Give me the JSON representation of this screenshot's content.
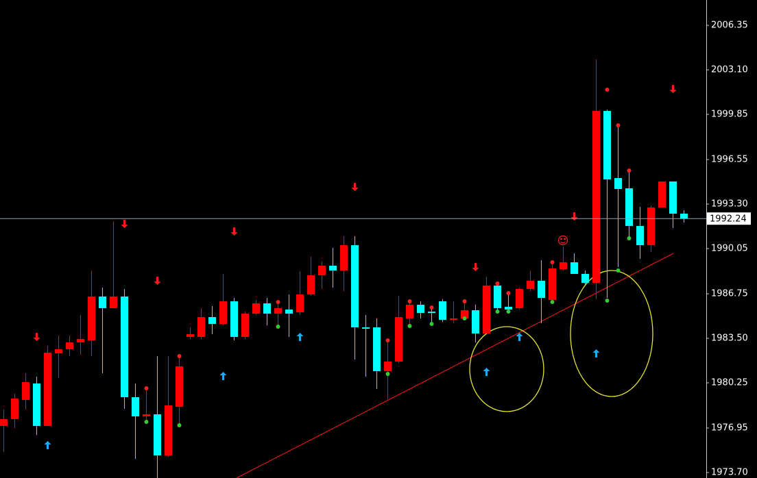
{
  "chart_data": {
    "type": "candlestick",
    "up_color": "#ff0000",
    "down_color": "#00ffff",
    "categories": [
      null,
      null,
      null,
      null,
      null,
      null,
      null,
      null,
      null,
      null,
      null,
      null,
      null,
      null,
      null,
      null,
      null,
      null,
      null,
      null,
      null,
      null,
      null,
      null,
      null,
      null,
      null,
      null,
      null,
      null,
      null,
      null,
      null,
      null,
      null,
      null,
      null,
      null,
      null,
      null,
      null,
      null,
      null,
      null,
      null,
      null,
      null,
      null,
      null,
      null,
      null,
      null,
      null,
      null,
      null,
      null,
      null,
      null,
      null,
      null,
      null,
      null,
      null
    ],
    "open": [
      1977.1,
      1977.6,
      1979.0,
      1980.2,
      1977.1,
      1982.4,
      1982.7,
      1983.2,
      1983.35,
      1986.55,
      1985.7,
      1986.55,
      1979.2,
      1977.8,
      1977.95,
      1974.95,
      1978.5,
      1983.6,
      1983.6,
      1985.05,
      1984.55,
      1986.2,
      1983.6,
      1985.3,
      1986.05,
      1985.3,
      1985.6,
      1985.4,
      1986.7,
      1988.1,
      1988.8,
      1988.45,
      1990.3,
      1984.3,
      1984.3,
      1981.1,
      1981.8,
      1984.95,
      1985.95,
      1985.45,
      1986.2,
      1984.85,
      1984.95,
      1985.55,
      1983.85,
      1987.35,
      1985.8,
      1985.7,
      1987.1,
      1987.7,
      1986.3,
      1988.55,
      1989.05,
      1988.2,
      1987.55,
      2000.1,
      1995.2,
      1994.45,
      1991.7,
      1990.3,
      1993.05,
      1994.95,
      1992.6
    ],
    "high": [
      1978.3,
      1979.45,
      1980.95,
      1980.7,
      1982.95,
      1983.7,
      1983.7,
      1985.2,
      1988.45,
      1987.2,
      1992.05,
      1987.1,
      1980.2,
      1979.9,
      1982.2,
      1982.2,
      1982.2,
      1984.3,
      1985.7,
      1985.85,
      1988.2,
      1986.45,
      1985.45,
      1986.3,
      1986.45,
      1986.2,
      1986.7,
      1988.35,
      1989.45,
      1989.1,
      1990.1,
      1990.95,
      1990.95,
      1985.2,
      1984.95,
      1983.45,
      1986.6,
      1986.3,
      1986.2,
      1985.8,
      1986.35,
      1986.2,
      1986.2,
      1985.95,
      1987.95,
      1987.55,
      1986.8,
      1987.2,
      1988.45,
      1989.2,
      1989.2,
      1990.2,
      1989.7,
      1988.45,
      2003.85,
      2000.2,
      1998.95,
      1995.7,
      1993.1,
      1993.2,
      1994.95,
      1994.95,
      1992.85
    ],
    "low": [
      1975.2,
      1976.95,
      1978.3,
      1976.45,
      1977.1,
      1980.6,
      1982.2,
      1982.3,
      1982.2,
      1980.95,
      1985.7,
      1978.35,
      1974.7,
      1977.45,
      1973.3,
      1974.85,
      1977.1,
      1983.45,
      1983.45,
      1983.8,
      1984.45,
      1983.35,
      1983.45,
      1985.2,
      1984.45,
      1984.35,
      1983.6,
      1985.2,
      1986.6,
      1987.1,
      1987.2,
      1986.95,
      1981.95,
      1980.7,
      1979.8,
      1979.05,
      1981.7,
      1984.45,
      1984.95,
      1984.55,
      1984.7,
      1984.6,
      1984.95,
      1983.2,
      1983.85,
      1985.45,
      1985.45,
      1985.6,
      1986.95,
      1984.6,
      1986.2,
      1988.45,
      1988.2,
      1987.45,
      1986.35,
      1986.45,
      1988.7,
      1990.8,
      1989.3,
      1989.8,
      1993.05,
      1991.55,
      1991.95
    ],
    "close": [
      1977.6,
      1979.1,
      1980.3,
      1977.1,
      1982.45,
      1982.7,
      1983.2,
      1983.45,
      1986.55,
      1985.7,
      1986.55,
      1979.2,
      1977.8,
      1977.95,
      1974.95,
      1978.6,
      1981.45,
      1983.8,
      1985.05,
      1984.55,
      1986.2,
      1983.6,
      1985.3,
      1986.05,
      1985.3,
      1985.7,
      1985.3,
      1986.7,
      1988.1,
      1988.8,
      1988.45,
      1990.3,
      1984.3,
      1984.2,
      1981.1,
      1981.8,
      1985.05,
      1985.95,
      1985.35,
      1985.35,
      1984.85,
      1984.95,
      1985.55,
      1983.85,
      1987.35,
      1985.7,
      1985.6,
      1987.1,
      1987.7,
      1986.45,
      1988.6,
      1989.05,
      1988.2,
      1987.55,
      2000.1,
      1995.1,
      1994.4,
      1991.7,
      1990.3,
      1993.05,
      1994.95,
      1992.6,
      1992.24
    ],
    "down_arrows": {
      "color": "#ff1a1a",
      "values": [
        null,
        null,
        null,
        1983.6,
        null,
        null,
        null,
        null,
        null,
        null,
        null,
        1991.85,
        null,
        null,
        1987.7,
        null,
        null,
        null,
        null,
        null,
        null,
        1991.3,
        null,
        null,
        null,
        null,
        null,
        null,
        null,
        null,
        null,
        null,
        1994.55,
        null,
        null,
        null,
        null,
        null,
        null,
        null,
        null,
        null,
        null,
        1988.7,
        null,
        null,
        null,
        null,
        null,
        null,
        null,
        null,
        1992.4,
        null,
        null,
        null,
        null,
        null,
        null,
        null,
        null,
        2001.7,
        null
      ]
    },
    "up_arrows": {
      "color": "#1ea8ff",
      "values": [
        null,
        null,
        null,
        null,
        1975.7,
        null,
        null,
        null,
        null,
        null,
        null,
        null,
        null,
        null,
        null,
        null,
        null,
        null,
        null,
        null,
        1980.75,
        null,
        null,
        null,
        null,
        null,
        null,
        1983.6,
        null,
        null,
        null,
        null,
        null,
        null,
        null,
        null,
        null,
        null,
        null,
        null,
        null,
        null,
        null,
        null,
        1981.05,
        null,
        null,
        1983.6,
        null,
        null,
        null,
        null,
        null,
        null,
        1982.4,
        null,
        null,
        null,
        null,
        null,
        null,
        null,
        null
      ]
    },
    "red_dots": {
      "color": "#ff2020",
      "values": [
        null,
        null,
        null,
        null,
        null,
        null,
        null,
        null,
        null,
        null,
        null,
        null,
        null,
        1979.85,
        null,
        null,
        1982.2,
        null,
        null,
        null,
        null,
        null,
        null,
        null,
        null,
        1986.15,
        null,
        null,
        null,
        null,
        null,
        null,
        null,
        null,
        null,
        1983.35,
        null,
        1986.2,
        null,
        1985.75,
        null,
        null,
        1986.2,
        null,
        null,
        1987.5,
        1986.8,
        null,
        null,
        null,
        1989.05,
        null,
        null,
        null,
        null,
        2001.65,
        1999.05,
        1995.75,
        null,
        null,
        null,
        null,
        null
      ]
    },
    "green_dots": {
      "color": "#33cc33",
      "values": [
        null,
        null,
        null,
        null,
        null,
        null,
        null,
        null,
        null,
        null,
        null,
        null,
        null,
        1977.4,
        null,
        null,
        1977.15,
        null,
        null,
        null,
        null,
        null,
        null,
        null,
        null,
        1984.35,
        null,
        null,
        null,
        null,
        null,
        null,
        null,
        null,
        null,
        1980.9,
        null,
        1984.4,
        null,
        1984.55,
        null,
        null,
        1984.95,
        null,
        null,
        1985.45,
        1985.45,
        null,
        null,
        null,
        1986.15,
        null,
        null,
        null,
        null,
        1986.25,
        1988.45,
        1990.8,
        null,
        null,
        null,
        null,
        null
      ]
    },
    "current_price": 1992.24,
    "ylim": [
      1973.3,
      2008.2
    ],
    "yticks": [
      2006.35,
      {
        "value": 2003.1,
        "label": "2003.10"
      },
      1999.85,
      1996.55,
      {
        "value": 1993.3,
        "label": "1993.30"
      },
      1990.05,
      1986.75,
      {
        "value": 1983.5,
        "label": "1983.50"
      },
      1980.25,
      1976.95,
      {
        "value": 1973.7,
        "label": "1973.70"
      }
    ]
  }
}
